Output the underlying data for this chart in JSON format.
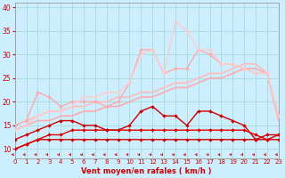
{
  "title": "",
  "xlabel": "Vent moyen/en rafales ( km/h )",
  "bg_color": "#cceeff",
  "grid_color": "#aadddd",
  "x": [
    0,
    1,
    2,
    3,
    4,
    5,
    6,
    7,
    8,
    9,
    10,
    11,
    12,
    13,
    14,
    15,
    16,
    17,
    18,
    19,
    20,
    21,
    22,
    23
  ],
  "series": [
    {
      "color": "#cc0000",
      "linewidth": 1.0,
      "marker": "D",
      "markersize": 2.0,
      "y": [
        10,
        11,
        12,
        12,
        12,
        12,
        12,
        12,
        12,
        12,
        12,
        12,
        12,
        12,
        12,
        12,
        12,
        12,
        12,
        12,
        12,
        12,
        12,
        12
      ]
    },
    {
      "color": "#dd0000",
      "linewidth": 1.0,
      "marker": "D",
      "markersize": 2.0,
      "y": [
        10,
        11,
        12,
        13,
        13,
        14,
        14,
        14,
        14,
        14,
        14,
        14,
        14,
        14,
        14,
        14,
        14,
        14,
        14,
        14,
        14,
        13,
        12,
        13
      ]
    },
    {
      "color": "#cc0000",
      "linewidth": 1.0,
      "marker": "D",
      "markersize": 2.0,
      "y": [
        12,
        13,
        14,
        15,
        16,
        16,
        15,
        15,
        14,
        14,
        15,
        18,
        19,
        17,
        17,
        15,
        18,
        18,
        17,
        16,
        15,
        12,
        13,
        13
      ]
    },
    {
      "color": "#ffaaaa",
      "linewidth": 1.2,
      "marker": null,
      "markersize": 0,
      "y": [
        14,
        15,
        16,
        16,
        17,
        17,
        18,
        18,
        19,
        19,
        20,
        21,
        21,
        22,
        23,
        23,
        24,
        25,
        25,
        26,
        27,
        27,
        26,
        16
      ]
    },
    {
      "color": "#ffbbbb",
      "linewidth": 1.2,
      "marker": null,
      "markersize": 0,
      "y": [
        15,
        16,
        17,
        18,
        18,
        19,
        19,
        20,
        20,
        21,
        21,
        22,
        22,
        23,
        24,
        24,
        25,
        26,
        26,
        27,
        28,
        28,
        26,
        16
      ]
    },
    {
      "color": "#ffaaaa",
      "linewidth": 1.0,
      "marker": "D",
      "markersize": 2.0,
      "y": [
        15,
        16,
        22,
        21,
        19,
        20,
        20,
        20,
        19,
        20,
        24,
        31,
        31,
        26,
        27,
        27,
        31,
        30,
        28,
        28,
        27,
        26,
        26,
        17
      ]
    },
    {
      "color": "#ffcccc",
      "linewidth": 1.0,
      "marker": "D",
      "markersize": 2.0,
      "y": [
        14,
        15,
        17,
        18,
        18,
        19,
        21,
        21,
        22,
        22,
        24,
        30,
        31,
        26,
        37,
        35,
        31,
        31,
        28,
        28,
        27,
        26,
        26,
        17
      ]
    }
  ],
  "xlim": [
    0,
    23
  ],
  "ylim": [
    8,
    41
  ],
  "yticks": [
    10,
    15,
    20,
    25,
    30,
    35,
    40
  ],
  "xticks": [
    0,
    1,
    2,
    3,
    4,
    5,
    6,
    7,
    8,
    9,
    10,
    11,
    12,
    13,
    14,
    15,
    16,
    17,
    18,
    19,
    20,
    21,
    22,
    23
  ],
  "xlabel_color": "#cc0000",
  "tick_color": "#cc0000",
  "arrow_color": "#cc0000",
  "spine_color": "#999999"
}
